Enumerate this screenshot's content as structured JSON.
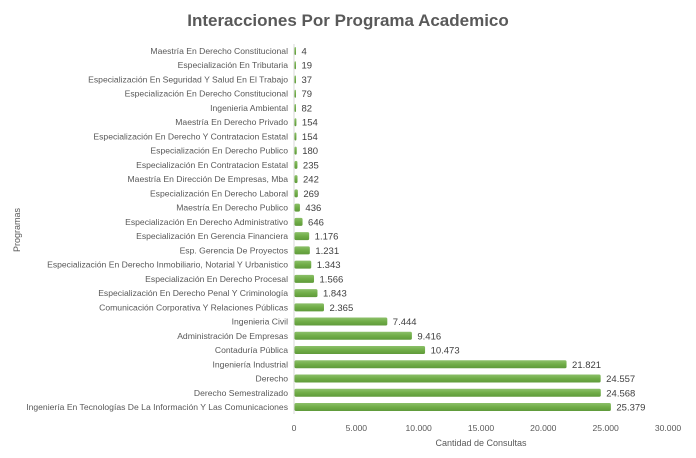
{
  "chart_data": {
    "type": "bar",
    "orientation": "horizontal",
    "title": "Interacciones Por Programa Academico",
    "xlabel": "Cantidad de Consultas",
    "ylabel": "Programas",
    "xlim": [
      0,
      30000
    ],
    "xticks": [
      0,
      5000,
      10000,
      15000,
      20000,
      25000,
      30000
    ],
    "xtick_labels": [
      "0",
      "5.000",
      "10.000",
      "15.000",
      "20.000",
      "25.000",
      "30.000"
    ],
    "grid": false,
    "bar_color": "#70AD47",
    "categories": [
      "Maestría En Derecho Constitucional",
      "Especialización En Tributaria",
      "Especialización En Seguridad Y Salud En El Trabajo",
      "Especialización En Derecho Constitucional",
      "Ingenieria Ambiental",
      "Maestría En Derecho Privado",
      "Especialización En Derecho Y Contratacion Estatal",
      "Especialización En Derecho Publico",
      "Especialización En Contratacion Estatal",
      "Maestría En Dirección De Empresas, Mba",
      "Especialización En Derecho Laboral",
      "Maestría En Derecho Publico",
      "Especialización En Derecho Administrativo",
      "Especialización En Gerencia Financiera",
      "Esp. Gerencia De Proyectos",
      "Especialización En Derecho Inmobiliario, Notarial Y Urbanistico",
      "Especialización En Derecho Procesal",
      "Especialización En Derecho Penal Y Criminología",
      "Comunicación Corporativa Y Relaciones Públicas",
      "Ingenieria Civil",
      "Administración De Empresas",
      "Contaduría Pública",
      "Ingeniería Industrial",
      "Derecho",
      "Derecho Semestralizado",
      "Ingeniería En Tecnologías De La Información Y Las Comunicaciones"
    ],
    "values": [
      4,
      19,
      37,
      79,
      82,
      154,
      154,
      180,
      235,
      242,
      269,
      436,
      646,
      1176,
      1231,
      1343,
      1566,
      1843,
      2365,
      7444,
      9416,
      10473,
      21821,
      24557,
      24568,
      25379
    ],
    "value_labels": [
      "4",
      "19",
      "37",
      "79",
      "82",
      "154",
      "154",
      "180",
      "235",
      "242",
      "269",
      "436",
      "646",
      "1.176",
      "1.231",
      "1.343",
      "1.566",
      "1.843",
      "2.365",
      "7.444",
      "9.416",
      "10.473",
      "21.821",
      "24.557",
      "24.568",
      "25.379"
    ]
  }
}
